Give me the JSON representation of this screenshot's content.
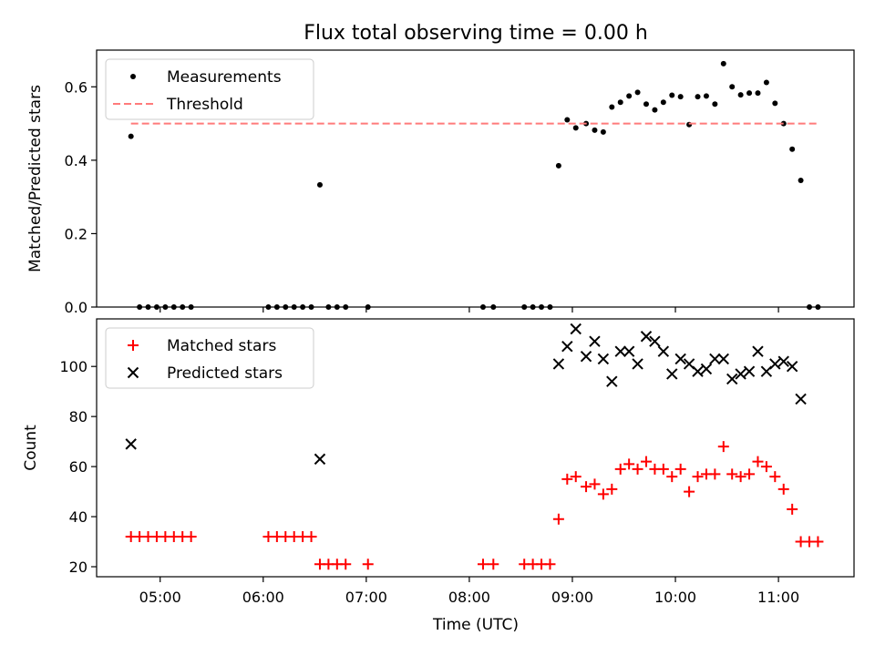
{
  "title": "Flux total observing time = 0.00 h",
  "xlabel": "Time (UTC)",
  "x_ticks": [
    "05:00",
    "06:00",
    "07:00",
    "08:00",
    "09:00",
    "10:00",
    "11:00"
  ],
  "chart_data": [
    {
      "type": "scatter",
      "ylabel": "Matched/Predicted stars",
      "xlim": [
        "04:23",
        "11:44"
      ],
      "ylim": [
        0,
        0.7
      ],
      "yticks": [
        "0.0",
        "0.2",
        "0.4",
        "0.6"
      ],
      "legend": "top-left",
      "grid": false,
      "series": [
        {
          "name": "Measurements",
          "style": "dot",
          "color": "#000000",
          "points": [
            [
              "04:43",
              0.465
            ],
            [
              "04:48",
              0.0
            ],
            [
              "04:53",
              0.0
            ],
            [
              "04:58",
              0.0
            ],
            [
              "05:03",
              0.0
            ],
            [
              "05:08",
              0.0
            ],
            [
              "05:13",
              0.0
            ],
            [
              "05:18",
              0.0
            ],
            [
              "06:03",
              0.0
            ],
            [
              "06:08",
              0.0
            ],
            [
              "06:13",
              0.0
            ],
            [
              "06:18",
              0.0
            ],
            [
              "06:23",
              0.0
            ],
            [
              "06:28",
              0.0
            ],
            [
              "06:33",
              0.333
            ],
            [
              "06:38",
              0.0
            ],
            [
              "06:43",
              0.0
            ],
            [
              "06:48",
              0.0
            ],
            [
              "07:01",
              0.0
            ],
            [
              "08:08",
              0.0
            ],
            [
              "08:14",
              0.0
            ],
            [
              "08:32",
              0.0
            ],
            [
              "08:37",
              0.0
            ],
            [
              "08:42",
              0.0
            ],
            [
              "08:47",
              0.0
            ],
            [
              "08:52",
              0.385
            ],
            [
              "08:57",
              0.51
            ],
            [
              "09:02",
              0.488
            ],
            [
              "09:08",
              0.5
            ],
            [
              "09:13",
              0.482
            ],
            [
              "09:18",
              0.477
            ],
            [
              "09:23",
              0.545
            ],
            [
              "09:28",
              0.558
            ],
            [
              "09:33",
              0.575
            ],
            [
              "09:38",
              0.585
            ],
            [
              "09:43",
              0.553
            ],
            [
              "09:48",
              0.537
            ],
            [
              "09:53",
              0.558
            ],
            [
              "09:58",
              0.577
            ],
            [
              "10:03",
              0.573
            ],
            [
              "10:08",
              0.497
            ],
            [
              "10:13",
              0.573
            ],
            [
              "10:18",
              0.575
            ],
            [
              "10:23",
              0.553
            ],
            [
              "10:28",
              0.663
            ],
            [
              "10:33",
              0.6
            ],
            [
              "10:38",
              0.578
            ],
            [
              "10:43",
              0.583
            ],
            [
              "10:48",
              0.583
            ],
            [
              "10:53",
              0.612
            ],
            [
              "10:58",
              0.555
            ],
            [
              "11:03",
              0.5
            ],
            [
              "11:08",
              0.43
            ],
            [
              "11:13",
              0.345
            ],
            [
              "11:18",
              0.0
            ],
            [
              "11:23",
              0.0
            ]
          ]
        },
        {
          "name": "Threshold",
          "style": "dashed-line",
          "color": "#ff7b7b",
          "points": [
            [
              "04:43",
              0.5
            ],
            [
              "11:23",
              0.5
            ]
          ]
        }
      ]
    },
    {
      "type": "scatter",
      "ylabel": "Count",
      "xlim": [
        "04:23",
        "11:44"
      ],
      "ylim": [
        16,
        119
      ],
      "yticks": [
        "20",
        "40",
        "60",
        "80",
        "100"
      ],
      "legend": "top-left",
      "grid": false,
      "series": [
        {
          "name": "Matched stars",
          "style": "plus",
          "color": "#ff0000",
          "points": [
            [
              "04:43",
              32
            ],
            [
              "04:48",
              32
            ],
            [
              "04:53",
              32
            ],
            [
              "04:58",
              32
            ],
            [
              "05:03",
              32
            ],
            [
              "05:08",
              32
            ],
            [
              "05:13",
              32
            ],
            [
              "05:18",
              32
            ],
            [
              "06:03",
              32
            ],
            [
              "06:08",
              32
            ],
            [
              "06:13",
              32
            ],
            [
              "06:18",
              32
            ],
            [
              "06:23",
              32
            ],
            [
              "06:28",
              32
            ],
            [
              "06:33",
              21
            ],
            [
              "06:38",
              21
            ],
            [
              "06:43",
              21
            ],
            [
              "06:48",
              21
            ],
            [
              "07:01",
              21
            ],
            [
              "08:08",
              21
            ],
            [
              "08:14",
              21
            ],
            [
              "08:32",
              21
            ],
            [
              "08:37",
              21
            ],
            [
              "08:42",
              21
            ],
            [
              "08:47",
              21
            ],
            [
              "08:52",
              39
            ],
            [
              "08:57",
              55
            ],
            [
              "09:02",
              56
            ],
            [
              "09:08",
              52
            ],
            [
              "09:13",
              53
            ],
            [
              "09:18",
              49
            ],
            [
              "09:23",
              51
            ],
            [
              "09:28",
              59
            ],
            [
              "09:33",
              61
            ],
            [
              "09:38",
              59
            ],
            [
              "09:43",
              62
            ],
            [
              "09:48",
              59
            ],
            [
              "09:53",
              59
            ],
            [
              "09:58",
              56
            ],
            [
              "10:03",
              59
            ],
            [
              "10:08",
              50
            ],
            [
              "10:13",
              56
            ],
            [
              "10:18",
              57
            ],
            [
              "10:23",
              57
            ],
            [
              "10:28",
              68
            ],
            [
              "10:33",
              57
            ],
            [
              "10:38",
              56
            ],
            [
              "10:43",
              57
            ],
            [
              "10:48",
              62
            ],
            [
              "10:53",
              60
            ],
            [
              "10:58",
              56
            ],
            [
              "11:03",
              51
            ],
            [
              "11:08",
              43
            ],
            [
              "11:13",
              30
            ],
            [
              "11:18",
              30
            ],
            [
              "11:23",
              30
            ]
          ]
        },
        {
          "name": "Predicted stars",
          "style": "x",
          "color": "#000000",
          "points": [
            [
              "04:43",
              69
            ],
            [
              "06:33",
              63
            ],
            [
              "08:52",
              101
            ],
            [
              "08:57",
              108
            ],
            [
              "09:02",
              115
            ],
            [
              "09:08",
              104
            ],
            [
              "09:13",
              110
            ],
            [
              "09:18",
              103
            ],
            [
              "09:23",
              94
            ],
            [
              "09:28",
              106
            ],
            [
              "09:33",
              106
            ],
            [
              "09:38",
              101
            ],
            [
              "09:43",
              112
            ],
            [
              "09:48",
              110
            ],
            [
              "09:53",
              106
            ],
            [
              "09:58",
              97
            ],
            [
              "10:03",
              103
            ],
            [
              "10:08",
              101
            ],
            [
              "10:13",
              98
            ],
            [
              "10:18",
              99
            ],
            [
              "10:23",
              103
            ],
            [
              "10:28",
              103
            ],
            [
              "10:33",
              95
            ],
            [
              "10:38",
              97
            ],
            [
              "10:43",
              98
            ],
            [
              "10:48",
              106
            ],
            [
              "10:53",
              98
            ],
            [
              "10:58",
              101
            ],
            [
              "11:03",
              102
            ],
            [
              "11:08",
              100
            ],
            [
              "11:13",
              87
            ]
          ]
        }
      ]
    }
  ]
}
